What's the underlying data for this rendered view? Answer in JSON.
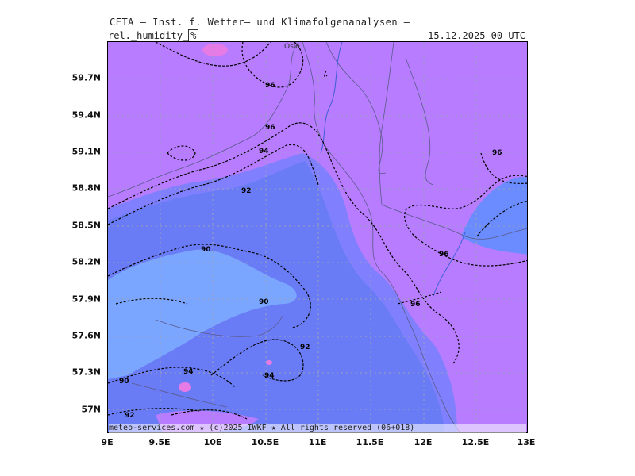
{
  "header": {
    "title": "CETA — Inst. f. Wetter— und Klimafolgenanalysen —",
    "variable": "rel._humidity_",
    "unit": "%",
    "datetime": "15.12.2025 00 UTC"
  },
  "map": {
    "city_label": "Oslo",
    "y_ticks": [
      "59.7N",
      "59.4N",
      "59.1N",
      "58.8N",
      "58.5N",
      "58.2N",
      "57.9N",
      "57.6N",
      "57.3N",
      "57N"
    ],
    "x_ticks": [
      "9E",
      "9.5E",
      "10E",
      "10.5E",
      "11E",
      "11.5E",
      "12E",
      "12.5E",
      "13E"
    ],
    "contour_labels": [
      "96",
      "96",
      "94",
      "92",
      "90",
      "90",
      "92",
      "94",
      "96",
      "96",
      "96",
      "90",
      "92",
      "94"
    ],
    "colors": {
      "very_high": "#b77cff",
      "high": "#8080ff",
      "mid": "#6a8cff",
      "low": "#7aa6ff",
      "pink": "#e67be6",
      "grid": "#9aa0b8",
      "coast": "#5a5a8a",
      "river": "#3c5fd8"
    }
  },
  "footer": "meteo-services.com ★ (c)2025 IWKF ★ All rights reserved (06+018)"
}
